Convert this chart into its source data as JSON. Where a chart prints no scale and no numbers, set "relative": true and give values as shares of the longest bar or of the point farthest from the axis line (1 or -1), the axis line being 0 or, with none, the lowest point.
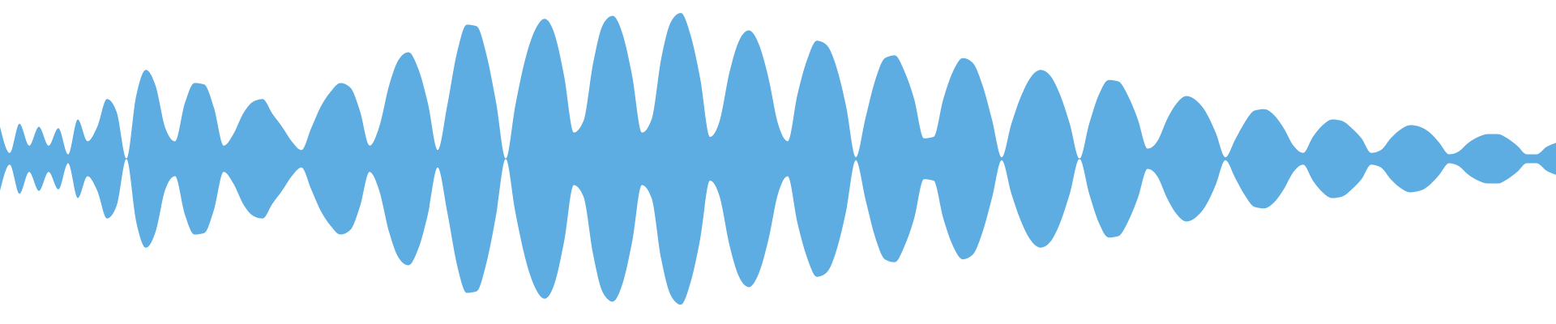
{
  "chart_data": {
    "type": "area",
    "relative": true,
    "ref_lines": [
      {
        "axis": "y",
        "value": 0,
        "color": "#5dade2"
      }
    ],
    "categories": [
      null,
      null,
      null,
      null,
      null,
      null,
      null,
      null,
      null,
      null,
      null,
      null,
      null,
      null,
      null,
      null,
      null,
      null,
      null,
      null,
      null,
      null,
      null,
      null,
      null,
      null,
      null,
      null,
      null,
      null,
      null,
      null,
      null,
      null,
      null,
      null,
      null,
      null,
      null,
      null,
      null,
      null,
      null,
      null,
      null,
      null,
      null,
      null,
      null,
      null,
      null,
      null,
      null,
      null,
      null,
      null,
      null,
      null,
      null,
      null,
      null,
      null,
      null,
      null,
      null,
      null,
      null,
      null,
      null,
      null,
      null,
      null,
      null,
      null,
      null,
      null,
      null,
      null,
      null,
      null,
      null,
      null,
      null,
      null,
      null,
      null,
      null,
      null,
      null,
      null,
      null,
      null,
      null,
      null,
      null,
      null,
      null,
      null,
      null,
      null,
      null,
      null,
      null,
      null,
      null,
      null,
      null,
      null,
      null,
      null,
      null,
      null,
      null,
      null,
      null,
      null,
      null,
      null,
      null,
      null,
      null,
      null,
      null,
      null,
      null,
      null,
      null,
      null,
      null,
      null,
      null,
      null,
      null,
      null,
      null,
      null,
      null,
      null,
      null,
      null,
      null,
      null,
      null,
      null,
      null,
      null,
      null,
      null,
      null,
      null,
      null,
      null,
      null,
      null,
      null,
      null,
      null,
      null,
      null,
      null,
      null
    ],
    "series": [
      {
        "color": "#5dade2",
        "values": [
          0.22,
          0.04,
          0.24,
          0.09,
          0.22,
          0.09,
          0.21,
          0.03,
          0.27,
          0.12,
          0.22,
          0.41,
          0.32,
          0,
          0.43,
          0.61,
          0.5,
          0.21,
          0.12,
          0.38,
          0.52,
          0.51,
          0.35,
          0.09,
          0.17,
          0.31,
          0.39,
          0.41,
          0.31,
          0.22,
          0.12,
          0.06,
          0.21,
          0.36,
          0.46,
          0.52,
          0.49,
          0.33,
          0.09,
          0.22,
          0.5,
          0.68,
          0.73,
          0.62,
          0.38,
          0.06,
          0.37,
          0.73,
          0.92,
          0.91,
          0.72,
          0.39,
          0,
          0.37,
          0.68,
          0.88,
          0.96,
          0.86,
          0.57,
          0.18,
          0.26,
          0.66,
          0.92,
          0.98,
          0.86,
          0.57,
          0.18,
          0.27,
          0.69,
          0.94,
          1,
          0.85,
          0.55,
          0.15,
          0.26,
          0.59,
          0.81,
          0.88,
          0.79,
          0.56,
          0.24,
          0.12,
          0.44,
          0.68,
          0.81,
          0.78,
          0.63,
          0.36,
          0.01,
          0.28,
          0.54,
          0.69,
          0.71,
          0.6,
          0.41,
          0.14,
          0.15,
          0.41,
          0.6,
          0.69,
          0.66,
          0.51,
          0.27,
          0.01,
          0.24,
          0.43,
          0.56,
          0.61,
          0.57,
          0.44,
          0.24,
          0,
          0.24,
          0.44,
          0.54,
          0.53,
          0.43,
          0.27,
          0.07,
          0.12,
          0.27,
          0.38,
          0.43,
          0.4,
          0.32,
          0.18,
          0.01,
          0.13,
          0.25,
          0.33,
          0.34,
          0.3,
          0.21,
          0.09,
          0.04,
          0.15,
          0.23,
          0.27,
          0.26,
          0.21,
          0.14,
          0.04,
          0.06,
          0.14,
          0.2,
          0.23,
          0.22,
          0.18,
          0.11,
          0.03,
          0.05,
          0.11,
          0.15,
          0.17,
          0.17,
          0.14,
          0.09,
          0.03,
          0.03,
          0.08,
          0.11
        ]
      },
      {
        "color": "#5dade2",
        "values": [
          -0.22,
          -0.04,
          -0.24,
          -0.09,
          -0.22,
          -0.09,
          -0.21,
          -0.03,
          -0.27,
          -0.12,
          -0.22,
          -0.41,
          -0.32,
          0,
          -0.43,
          -0.61,
          -0.5,
          -0.21,
          -0.12,
          -0.38,
          -0.52,
          -0.51,
          -0.35,
          -0.09,
          -0.17,
          -0.31,
          -0.39,
          -0.41,
          -0.31,
          -0.22,
          -0.12,
          -0.06,
          -0.21,
          -0.36,
          -0.46,
          -0.52,
          -0.49,
          -0.33,
          -0.09,
          -0.22,
          -0.5,
          -0.68,
          -0.73,
          -0.62,
          -0.38,
          -0.06,
          -0.37,
          -0.73,
          -0.92,
          -0.91,
          -0.72,
          -0.39,
          0,
          -0.37,
          -0.68,
          -0.88,
          -0.96,
          -0.86,
          -0.57,
          -0.18,
          -0.26,
          -0.66,
          -0.92,
          -0.98,
          -0.86,
          -0.57,
          -0.18,
          -0.27,
          -0.69,
          -0.94,
          -1,
          -0.85,
          -0.55,
          -0.15,
          -0.26,
          -0.59,
          -0.81,
          -0.88,
          -0.79,
          -0.56,
          -0.24,
          -0.12,
          -0.44,
          -0.68,
          -0.81,
          -0.78,
          -0.63,
          -0.36,
          -0.01,
          -0.28,
          -0.54,
          -0.69,
          -0.71,
          -0.6,
          -0.41,
          -0.14,
          -0.15,
          -0.41,
          -0.6,
          -0.69,
          -0.66,
          -0.51,
          -0.27,
          -0.01,
          -0.24,
          -0.43,
          -0.56,
          -0.61,
          -0.57,
          -0.44,
          -0.24,
          0,
          -0.24,
          -0.44,
          -0.54,
          -0.53,
          -0.43,
          -0.27,
          -0.07,
          -0.12,
          -0.27,
          -0.38,
          -0.43,
          -0.4,
          -0.32,
          -0.18,
          -0.01,
          -0.13,
          -0.25,
          -0.33,
          -0.34,
          -0.3,
          -0.21,
          -0.09,
          -0.04,
          -0.15,
          -0.23,
          -0.27,
          -0.26,
          -0.21,
          -0.14,
          -0.04,
          -0.06,
          -0.14,
          -0.2,
          -0.23,
          -0.22,
          -0.18,
          -0.11,
          -0.03,
          -0.05,
          -0.11,
          -0.15,
          -0.17,
          -0.17,
          -0.14,
          -0.09,
          -0.03,
          -0.03,
          -0.08,
          -0.11
        ]
      }
    ]
  }
}
